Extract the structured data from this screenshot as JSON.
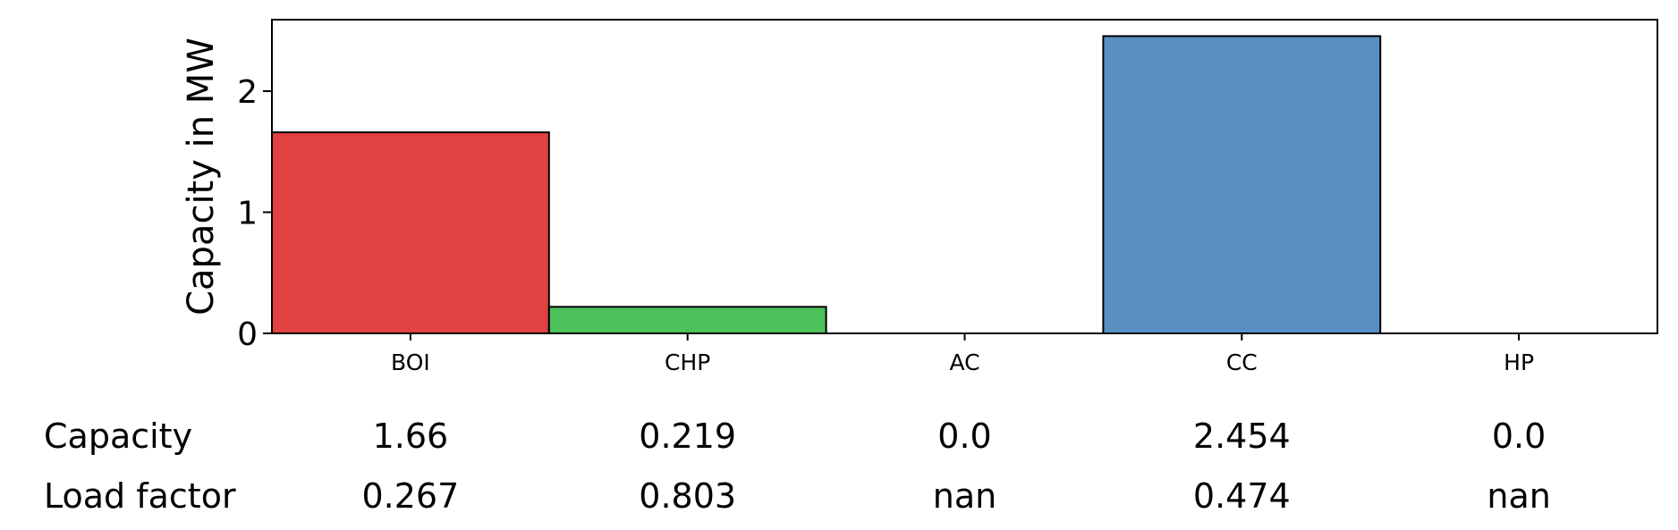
{
  "chart_data": {
    "type": "bar",
    "title": "",
    "xlabel": "",
    "ylabel": "Capacity in MW",
    "categories": [
      "BOI",
      "CHP",
      "AC",
      "CC",
      "HP"
    ],
    "values": [
      1.66,
      0.219,
      0.0,
      2.454,
      0.0
    ],
    "colors": [
      "#e04141",
      "#4dc25a",
      "#9b59b6",
      "#5a8fc4",
      "#f39c12"
    ],
    "ylim": [
      0,
      2.59
    ],
    "yticks": [
      0,
      1,
      2
    ],
    "grid": false,
    "legend": "none"
  },
  "table": {
    "rows": [
      {
        "label": "Capacity",
        "values": [
          "1.66",
          "0.219",
          "0.0",
          "2.454",
          "0.0"
        ]
      },
      {
        "label": "Load factor",
        "values": [
          "0.267",
          "0.803",
          "nan",
          "0.474",
          "nan"
        ]
      }
    ]
  }
}
